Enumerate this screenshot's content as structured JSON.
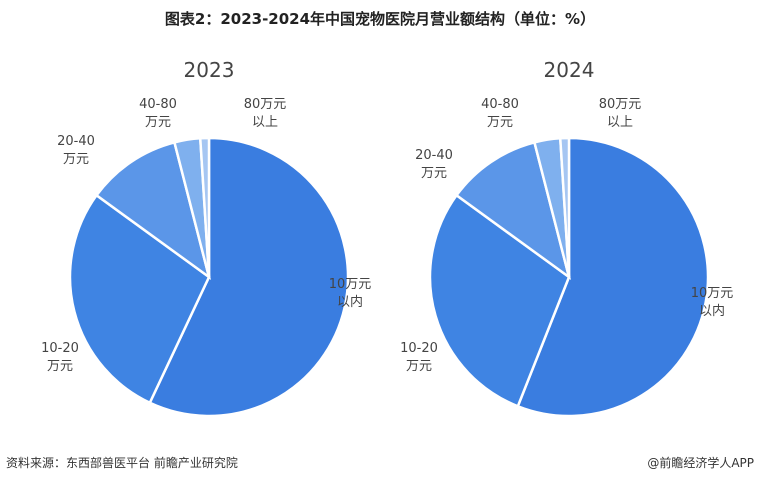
{
  "title": "图表2：2023-2024年中国宠物医院月营业额结构（单位：%）",
  "footer": {
    "source": "资料来源：东西部兽医平台 前瞻产业研究院",
    "brand": "@前瞻经济学人APP"
  },
  "chart_data": [
    {
      "type": "pie",
      "title": "2023",
      "categories": [
        "10万元以内",
        "10-20万元",
        "20-40万元",
        "40-80万元",
        "80万元以上"
      ],
      "values": [
        57.0,
        28.0,
        11.0,
        3.0,
        1.0
      ],
      "colors": [
        "#3a7de0",
        "#3f84e3",
        "#5b96e8",
        "#7fb0ee",
        "#a6c6f2"
      ]
    },
    {
      "type": "pie",
      "title": "2024",
      "categories": [
        "10万元以内",
        "10-20万元",
        "20-40万元",
        "40-80万元",
        "80万元以上"
      ],
      "values": [
        56.0,
        29.0,
        11.0,
        3.0,
        1.0
      ],
      "colors": [
        "#3a7de0",
        "#3f84e3",
        "#5b96e8",
        "#7fb0ee",
        "#a6c6f2"
      ]
    }
  ]
}
